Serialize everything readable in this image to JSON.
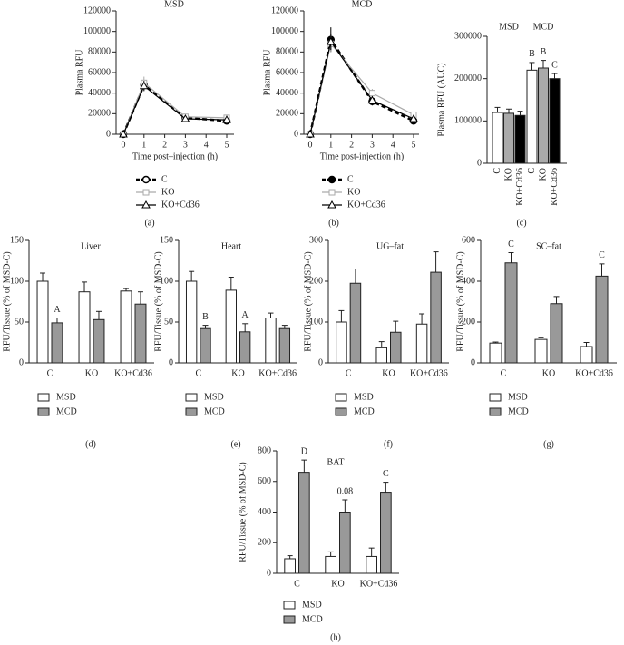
{
  "chart_data": [
    {
      "type": "line",
      "title": "MSD",
      "panel": "(a)",
      "y_label": "Plasma RFU",
      "x_label": "Time post–injection (h)",
      "x": [
        0,
        1,
        3,
        5
      ],
      "xlim": [
        0,
        5
      ],
      "xticks": [
        0,
        1,
        2,
        3,
        4,
        5
      ],
      "ylim": [
        0,
        120000
      ],
      "yticks": [
        0,
        20000,
        40000,
        60000,
        80000,
        100000,
        120000
      ],
      "series": [
        {
          "name": "C",
          "color": "#000000",
          "marker": "open-circle",
          "dashed": true,
          "values": [
            0,
            48000,
            16000,
            13000
          ],
          "errors": [
            0,
            5000,
            2000,
            2000
          ]
        },
        {
          "name": "KO",
          "color": "#aaaaaa",
          "marker": "square",
          "dashed": false,
          "values": [
            0,
            50000,
            17000,
            16000
          ],
          "errors": [
            0,
            6000,
            2000,
            2000
          ]
        },
        {
          "name": "KO+Cd36",
          "color": "#000000",
          "marker": "triangle",
          "dashed": false,
          "values": [
            0,
            47000,
            15000,
            14000
          ],
          "errors": [
            0,
            5000,
            2000,
            2000
          ]
        }
      ]
    },
    {
      "type": "line",
      "title": "MCD",
      "panel": "(b)",
      "y_label": "Plasma RFU",
      "x_label": "Time post-injection (h)",
      "x": [
        0,
        1,
        3,
        5
      ],
      "xlim": [
        0,
        5
      ],
      "xticks": [
        0,
        1,
        2,
        3,
        4,
        5
      ],
      "ylim": [
        0,
        120000
      ],
      "yticks": [
        0,
        20000,
        40000,
        60000,
        80000,
        100000,
        120000
      ],
      "series": [
        {
          "name": "C",
          "color": "#000000",
          "marker": "circle",
          "dashed": true,
          "values": [
            0,
            92000,
            32000,
            13000
          ],
          "errors": [
            0,
            12000,
            4000,
            3000
          ]
        },
        {
          "name": "KO",
          "color": "#aaaaaa",
          "marker": "square",
          "dashed": false,
          "values": [
            0,
            88000,
            40000,
            19000
          ],
          "errors": [
            0,
            8000,
            4000,
            3000
          ]
        },
        {
          "name": "KO+Cd36",
          "color": "#000000",
          "marker": "triangle",
          "dashed": false,
          "values": [
            0,
            90000,
            33000,
            15000
          ],
          "errors": [
            0,
            8000,
            4000,
            3000
          ]
        }
      ]
    },
    {
      "type": "bar",
      "panel": "(c)",
      "y_label": "Plasma RFU (AUC)",
      "groups": [
        "MSD",
        "MCD"
      ],
      "categories": [
        "C",
        "KO",
        "KO+Cd36",
        "C",
        "KO",
        "KO+Cd36"
      ],
      "colors": [
        "#ffffff",
        "#aaaaaa",
        "#000000",
        "#ffffff",
        "#aaaaaa",
        "#000000"
      ],
      "values": [
        120000,
        118000,
        113000,
        220000,
        225000,
        200000
      ],
      "errors": [
        12000,
        10000,
        10000,
        18000,
        18000,
        12000
      ],
      "annotations": [
        null,
        null,
        null,
        "B",
        "B",
        "C"
      ],
      "ylim": [
        0,
        300000
      ],
      "yticks": [
        0,
        100000,
        200000,
        300000
      ]
    },
    {
      "type": "bar",
      "title": "Liver",
      "panel": "(d)",
      "y_label": "RFU/Tissue (% of MSD-C)",
      "categories": [
        "C",
        "KO",
        "KO+Cd36"
      ],
      "ylim": [
        0,
        150
      ],
      "yticks": [
        0,
        50,
        100,
        150
      ],
      "series": [
        {
          "name": "MSD",
          "color": "#ffffff",
          "values": [
            100,
            87,
            88
          ],
          "errors": [
            10,
            12,
            3
          ],
          "annotations": [
            null,
            null,
            null
          ]
        },
        {
          "name": "MCD",
          "color": "#999999",
          "values": [
            49,
            53,
            72
          ],
          "errors": [
            6,
            10,
            15
          ],
          "annotations": [
            "A",
            null,
            null
          ]
        }
      ]
    },
    {
      "type": "bar",
      "title": "Heart",
      "panel": "(e)",
      "y_label": "RFU/Tissue (% of MSD-C)",
      "categories": [
        "C",
        "KO",
        "KO+Cd36"
      ],
      "ylim": [
        0,
        150
      ],
      "yticks": [
        0,
        50,
        100,
        150
      ],
      "series": [
        {
          "name": "MSD",
          "color": "#ffffff",
          "values": [
            100,
            89,
            55
          ],
          "errors": [
            12,
            16,
            6
          ],
          "annotations": [
            null,
            null,
            null
          ]
        },
        {
          "name": "MCD",
          "color": "#999999",
          "values": [
            42,
            38,
            42
          ],
          "errors": [
            4,
            10,
            4
          ],
          "annotations": [
            "B",
            "A",
            null
          ]
        }
      ]
    },
    {
      "type": "bar",
      "title": "UG–fat",
      "panel": "(f)",
      "y_label": "RFU/Tissue (% of MSD-C)",
      "categories": [
        "C",
        "KO",
        "KO+Cd36"
      ],
      "ylim": [
        0,
        300
      ],
      "yticks": [
        0,
        100,
        200,
        300
      ],
      "series": [
        {
          "name": "MSD",
          "color": "#ffffff",
          "values": [
            100,
            37,
            95
          ],
          "errors": [
            28,
            15,
            25
          ],
          "annotations": [
            null,
            null,
            null
          ]
        },
        {
          "name": "MCD",
          "color": "#999999",
          "values": [
            195,
            75,
            222
          ],
          "errors": [
            35,
            27,
            50
          ],
          "annotations": [
            null,
            null,
            null
          ]
        }
      ]
    },
    {
      "type": "bar",
      "title": "SC–fat",
      "panel": "(g)",
      "y_label": "RFU/Tissue (% of MSD-C)",
      "categories": [
        "C",
        "KO",
        "KO+Cd36"
      ],
      "ylim": [
        0,
        600
      ],
      "yticks": [
        0,
        200,
        400,
        600
      ],
      "series": [
        {
          "name": "MSD",
          "color": "#ffffff",
          "values": [
            97,
            115,
            80
          ],
          "errors": [
            5,
            8,
            20
          ],
          "annotations": [
            null,
            null,
            null
          ]
        },
        {
          "name": "MCD",
          "color": "#999999",
          "values": [
            490,
            290,
            425
          ],
          "errors": [
            50,
            35,
            60
          ],
          "annotations": [
            "C",
            null,
            "C"
          ]
        }
      ]
    },
    {
      "type": "bar",
      "title": "BAT",
      "panel": "(h)",
      "y_label": "RFU/Tissue (% of MSD-C)",
      "categories": [
        "C",
        "KO",
        "KO+Cd36"
      ],
      "ylim": [
        0,
        800
      ],
      "yticks": [
        0,
        200,
        400,
        600,
        800
      ],
      "series": [
        {
          "name": "MSD",
          "color": "#ffffff",
          "values": [
            95,
            110,
            110
          ],
          "errors": [
            20,
            30,
            55
          ],
          "annotations": [
            null,
            null,
            null
          ]
        },
        {
          "name": "MCD",
          "color": "#999999",
          "values": [
            660,
            400,
            530
          ],
          "errors": [
            80,
            80,
            65
          ],
          "annotations": [
            "D",
            "0.08",
            "C"
          ]
        }
      ]
    }
  ]
}
